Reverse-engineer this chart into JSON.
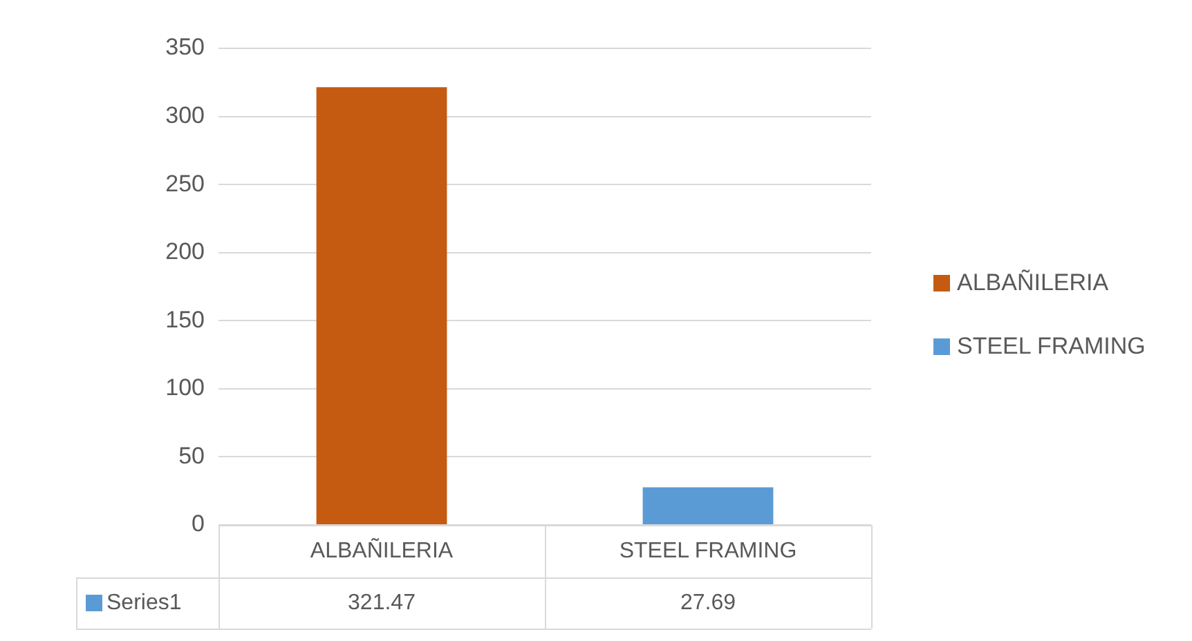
{
  "chart_data": {
    "type": "bar",
    "categories": [
      "ALBAÑILERIA",
      "STEEL FRAMING"
    ],
    "series": [
      {
        "name": "Series1",
        "color": "#5b9bd5",
        "colors": [
          "#c55a11",
          "#5b9bd5"
        ],
        "values": [
          321.47,
          27.69
        ]
      }
    ],
    "ylim": [
      0,
      350
    ],
    "yticks": [
      0,
      50,
      100,
      150,
      200,
      250,
      300,
      350
    ],
    "grid": "y",
    "legend": "bottom left",
    "data_labels": true
  }
}
